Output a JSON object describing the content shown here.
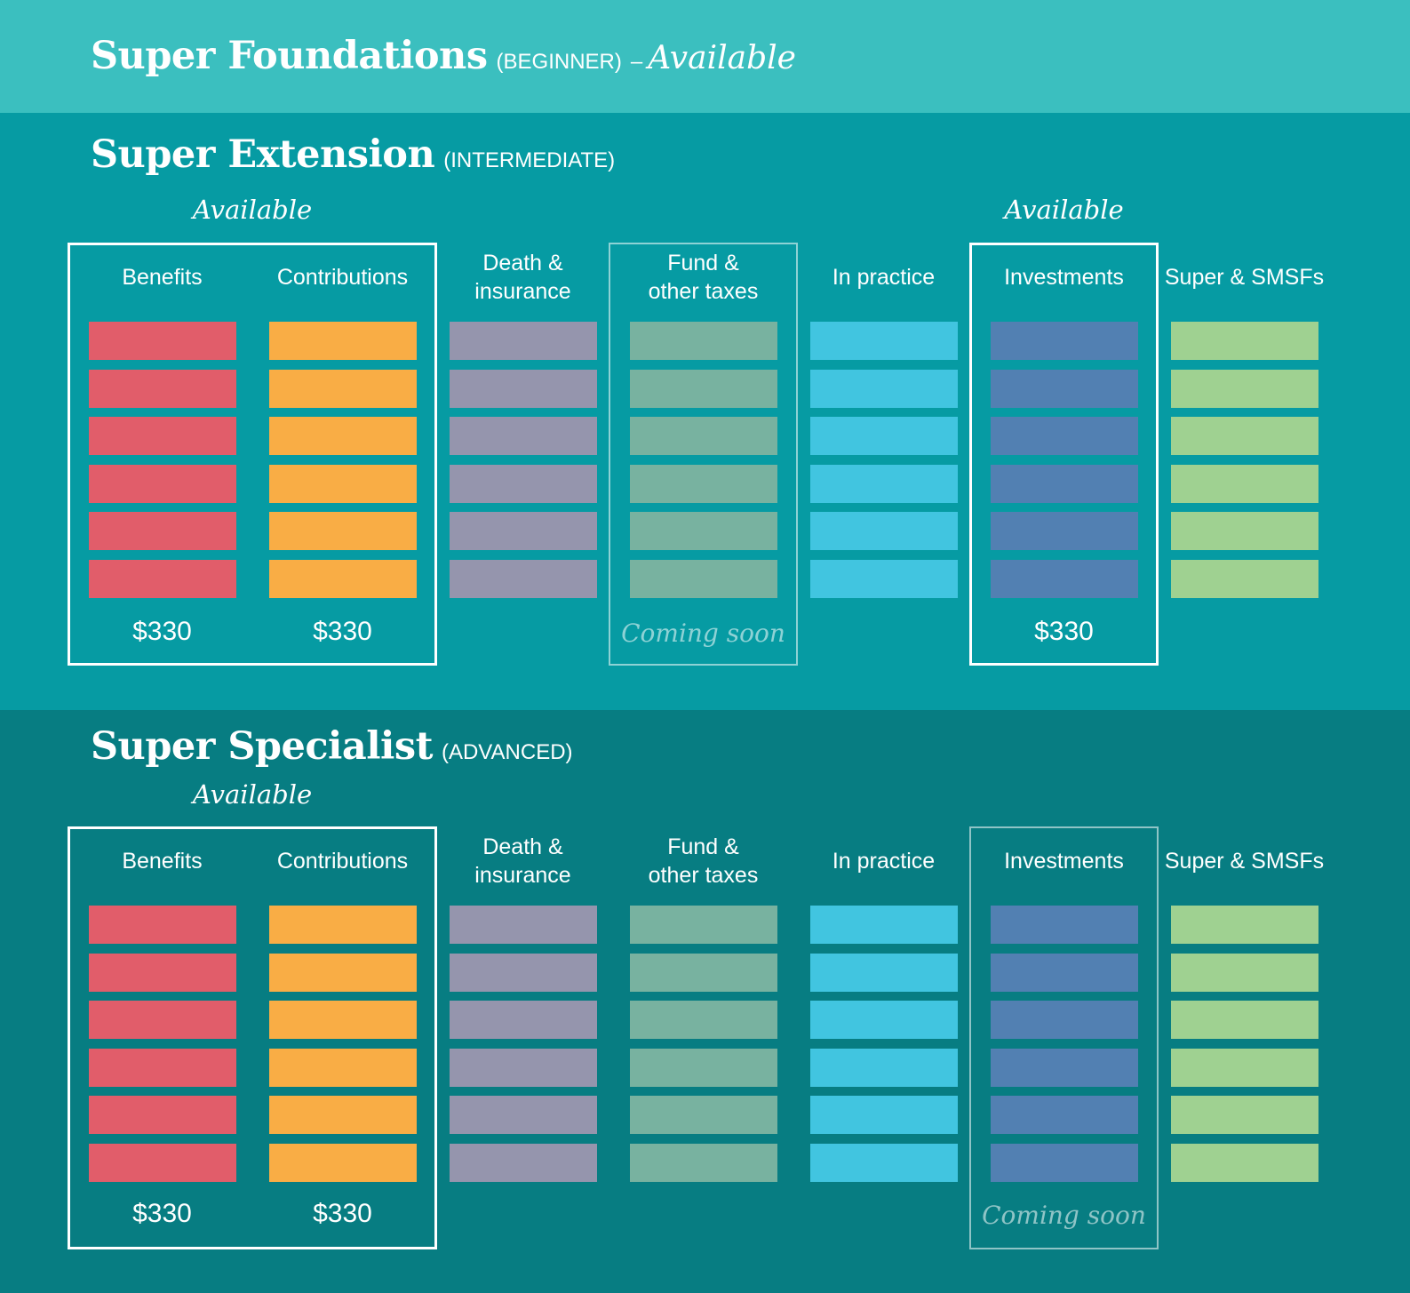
{
  "foundations": {
    "title": "Super Foundations",
    "level": "(BEGINNER)",
    "separator": "–",
    "status": "Available"
  },
  "columns": [
    {
      "label": "Benefits",
      "color": "#e15d6a"
    },
    {
      "label": "Contributions",
      "color": "#f9ad45"
    },
    {
      "label": "Death &\ninsurance",
      "color": "#9595ad"
    },
    {
      "label": "Fund &\nother taxes",
      "color": "#78b2a0"
    },
    {
      "label": "In practice",
      "color": "#41c5e0"
    },
    {
      "label": "Investments",
      "color": "#5280b2"
    },
    {
      "label": "Super & SMSFs",
      "color": "#9fd191"
    }
  ],
  "bars_per_column": 6,
  "extension": {
    "title": "Super Extension",
    "level": "(INTERMEDIATE)",
    "available_labels": [
      {
        "text": "Available",
        "column": 0.5
      },
      {
        "text": "Available",
        "column": 5
      }
    ],
    "frames": [
      {
        "first": 0,
        "last": 1,
        "style": "bright"
      },
      {
        "first": 3,
        "last": 3,
        "style": "dim"
      },
      {
        "first": 5,
        "last": 5,
        "style": "bright"
      }
    ],
    "footers": [
      {
        "column": 0,
        "type": "price",
        "text": "$330"
      },
      {
        "column": 1,
        "type": "price",
        "text": "$330"
      },
      {
        "column": 3,
        "type": "soon",
        "text": "Coming soon"
      },
      {
        "column": 5,
        "type": "price",
        "text": "$330"
      }
    ]
  },
  "specialist": {
    "title": "Super Specialist",
    "level": "(ADVANCED)",
    "available_labels": [
      {
        "text": "Available",
        "column": 0.5
      }
    ],
    "frames": [
      {
        "first": 0,
        "last": 1,
        "style": "bright"
      },
      {
        "first": 5,
        "last": 5,
        "style": "dim"
      }
    ],
    "footers": [
      {
        "column": 0,
        "type": "price",
        "text": "$330"
      },
      {
        "column": 1,
        "type": "price",
        "text": "$330"
      },
      {
        "column": 5,
        "type": "soon",
        "text": "Coming soon"
      }
    ]
  }
}
